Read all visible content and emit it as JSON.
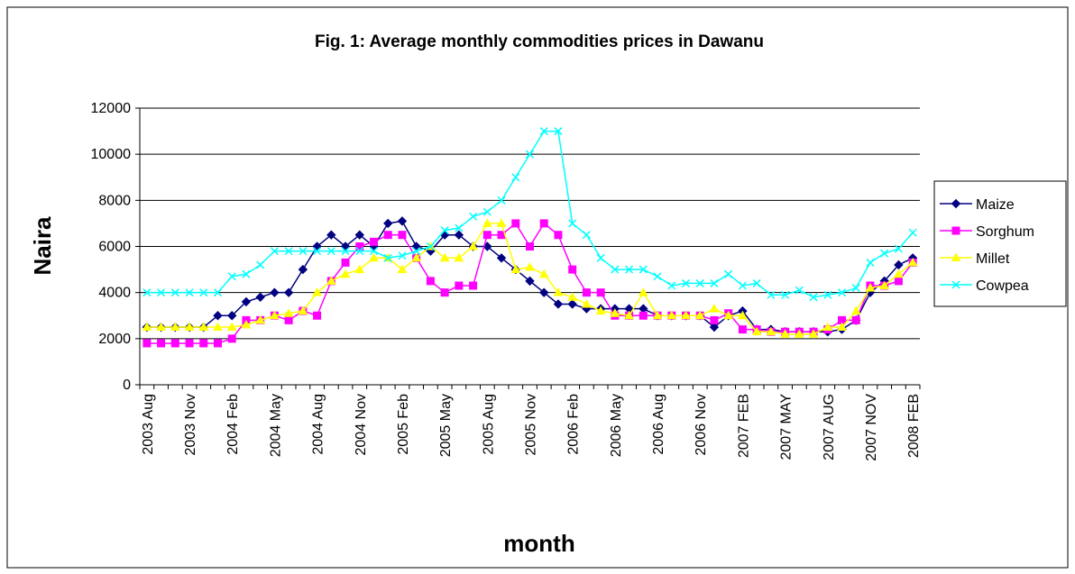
{
  "chart_data": {
    "type": "line",
    "title": "Fig. 1: Average monthly commodities prices in Dawanu",
    "xlabel": "month",
    "ylabel": "Naira",
    "categories": [
      "2003 Aug",
      null,
      null,
      "2003 Nov",
      null,
      null,
      "2004 Feb",
      null,
      null,
      "2004 May",
      null,
      null,
      "2004 Aug",
      null,
      null,
      "2004 Nov",
      null,
      null,
      "2005 Feb",
      null,
      null,
      "2005 May",
      null,
      null,
      "2005 Aug",
      null,
      null,
      "2005 Nov",
      null,
      null,
      "2006 Feb",
      null,
      null,
      "2006 May",
      null,
      null,
      "2006 Aug",
      null,
      null,
      "2006 Nov",
      null,
      null,
      "2007 FEB",
      null,
      null,
      "2007 MAY",
      null,
      null,
      "2007 AUG",
      null,
      null,
      "2007 NOV",
      null,
      null,
      "2008 FEB"
    ],
    "series": [
      {
        "name": "Maize",
        "color": "#000080",
        "marker": "diamond",
        "values": [
          2500,
          2500,
          2500,
          2500,
          2500,
          3000,
          3000,
          3600,
          3800,
          4000,
          4000,
          5000,
          6000,
          6500,
          6000,
          6500,
          6000,
          7000,
          7100,
          6000,
          5800,
          6500,
          6500,
          6000,
          6000,
          5500,
          5000,
          4500,
          4000,
          3500,
          3500,
          3300,
          3300,
          3300,
          3300,
          3300,
          3000,
          3000,
          3000,
          3000,
          2500,
          3000,
          3200,
          2400,
          2400,
          2300,
          2300,
          2300,
          2300,
          2400,
          2800,
          4000,
          4500,
          5200,
          5500
        ]
      },
      {
        "name": "Sorghum",
        "color": "#ff00ff",
        "marker": "square",
        "values": [
          1800,
          1800,
          1800,
          1800,
          1800,
          1800,
          2000,
          2800,
          2800,
          3000,
          2800,
          3200,
          3000,
          4500,
          5300,
          6000,
          6200,
          6500,
          6500,
          5500,
          4500,
          4000,
          4300,
          4300,
          6500,
          6500,
          7000,
          6000,
          7000,
          6500,
          5000,
          4000,
          4000,
          3000,
          3000,
          3000,
          3000,
          3000,
          3000,
          3000,
          2800,
          3100,
          2400,
          2400,
          2300,
          2300,
          2300,
          2300,
          2400,
          2800,
          2800,
          4300,
          4300,
          4500,
          5300
        ]
      },
      {
        "name": "Millet",
        "color": "#ffff00",
        "marker": "triangle",
        "values": [
          2500,
          2500,
          2500,
          2500,
          2500,
          2500,
          2500,
          2600,
          2800,
          3000,
          3100,
          3200,
          4000,
          4500,
          4800,
          5000,
          5500,
          5500,
          5000,
          5500,
          6000,
          5500,
          5500,
          6000,
          7000,
          7000,
          5000,
          5100,
          4800,
          4000,
          3800,
          3500,
          3200,
          3100,
          3000,
          4000,
          3000,
          3000,
          3000,
          3000,
          3300,
          3000,
          3000,
          2300,
          2300,
          2200,
          2200,
          2200,
          2500,
          2500,
          3200,
          4200,
          4300,
          4800,
          5300
        ]
      },
      {
        "name": "Cowpea",
        "color": "#00ffff",
        "marker": "x",
        "values": [
          4000,
          4000,
          4000,
          4000,
          4000,
          4000,
          4700,
          4800,
          5200,
          5800,
          5800,
          5800,
          5800,
          5800,
          5800,
          5800,
          5800,
          5500,
          5600,
          5800,
          6000,
          6700,
          6800,
          7300,
          7500,
          8000,
          9000,
          10000,
          11000,
          11000,
          7000,
          6500,
          5500,
          5000,
          5000,
          5000,
          4700,
          4300,
          4400,
          4400,
          4400,
          4800,
          4300,
          4400,
          3900,
          3900,
          4100,
          3800,
          3900,
          4000,
          4200,
          5300,
          5700,
          5900,
          6600
        ]
      }
    ],
    "ylim": [
      0,
      12000
    ],
    "yticks": [
      0,
      2000,
      4000,
      6000,
      8000,
      10000,
      12000
    ],
    "grid": true,
    "legend": "right"
  }
}
